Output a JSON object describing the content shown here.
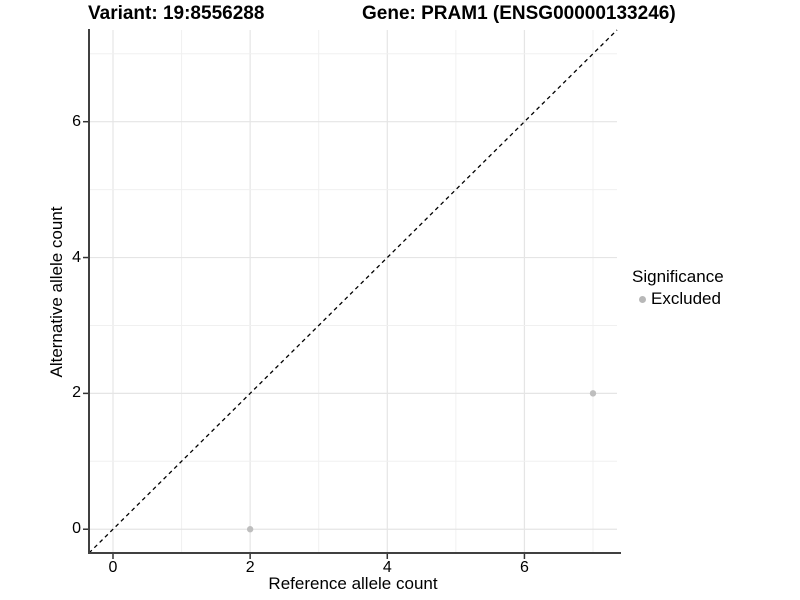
{
  "header": {
    "variant_title": "Variant: 19:8556288",
    "gene_title": "Gene: PRAM1 (ENSG00000133246)"
  },
  "chart_data": {
    "type": "scatter",
    "xlabel": "Reference allele count",
    "ylabel": "Alternative allele count",
    "x_ticks": [
      0,
      2,
      4,
      6
    ],
    "y_ticks": [
      0,
      2,
      4,
      6
    ],
    "xlim": [
      -0.35,
      7.35
    ],
    "ylim": [
      -0.35,
      7.35
    ],
    "grid": {
      "major_every": 2,
      "minor_every": 1,
      "major_color": "#e5e5e5",
      "minor_color": "#f0f0f0"
    },
    "points": [
      {
        "x": 2,
        "y": 0,
        "series": "Excluded"
      },
      {
        "x": 7,
        "y": 2,
        "series": "Excluded"
      }
    ],
    "point_color": "#bebebe",
    "point_radius": 3.2,
    "identity_line": {
      "slope": 1,
      "intercept": 0,
      "style": "dashed",
      "color": "#000000"
    },
    "axis_line_color": "#404040",
    "legend": {
      "title": "Significance",
      "position": "right",
      "items": [
        {
          "label": "Excluded",
          "color": "#b8b8b8"
        }
      ]
    }
  }
}
